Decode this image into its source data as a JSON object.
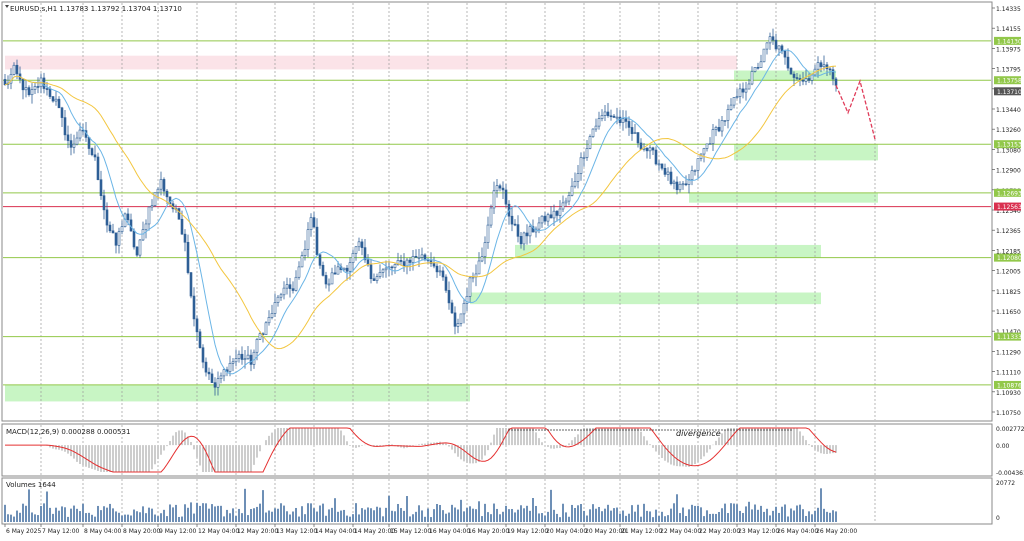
{
  "window": {
    "symbol_title": "EURUSD.s,H1  1.13783 1.13792 1.13704 1.13710"
  },
  "colors": {
    "background": "#ffffff",
    "candle": "#2f5f96",
    "support_line": "#92c84a",
    "zone_fill": "#c8f5c4",
    "pink_zone": "#fbe3e8",
    "red_line": "#d9304f",
    "ma_fast": "#6bb5e6",
    "ma_slow": "#f3c63f",
    "macd_signal": "#e53030",
    "macd_hist": "#9b9b9b",
    "volume": "#2f5f96",
    "projection": "#e03c5a",
    "grid": "#9a9a9a"
  },
  "price_axis": {
    "ticks": [
      "1.14335",
      "1.14155",
      "1.13975",
      "1.13795",
      "1.13620",
      "1.13440",
      "1.13260",
      "1.13080",
      "1.12900",
      "1.12720",
      "1.12540",
      "1.12365",
      "1.12185",
      "1.12005",
      "1.11825",
      "1.11650",
      "1.11470",
      "1.11290",
      "1.11110",
      "1.10930",
      "1.10750"
    ],
    "current_price": "1.13710",
    "ylim": [
      1.1062,
      1.1446
    ]
  },
  "levels": [
    {
      "label": "1.14130",
      "price": 1.1413,
      "color": "#92c84a"
    },
    {
      "label": "1.13758",
      "price": 1.13758,
      "color": "#92c84a"
    },
    {
      "label": "1.13153",
      "price": 1.13153,
      "color": "#92c84a"
    },
    {
      "label": "1.12693",
      "price": 1.12693,
      "color": "#92c84a"
    },
    {
      "label": "1.12563",
      "price": 1.12563,
      "color": "#d9304f"
    },
    {
      "label": "1.12080",
      "price": 1.1208,
      "color": "#92c84a"
    },
    {
      "label": "1.11333",
      "price": 1.11333,
      "color": "#92c84a"
    },
    {
      "label": "1.10876",
      "price": 1.10876,
      "color": "#92c84a"
    }
  ],
  "zones": [
    {
      "kind": "resistance",
      "start": 0,
      "end": 244,
      "top": 1.1399,
      "bottom": 1.1386
    },
    {
      "kind": "support",
      "start": 0,
      "end": 155,
      "top": 1.10876,
      "bottom": 1.1072
    },
    {
      "kind": "support",
      "start": 155,
      "end": 272,
      "top": 1.1175,
      "bottom": 1.1164
    },
    {
      "kind": "support",
      "start": 170,
      "end": 272,
      "top": 1.122,
      "bottom": 1.1208
    },
    {
      "kind": "support",
      "start": 228,
      "end": 291,
      "top": 1.12693,
      "bottom": 1.126
    },
    {
      "kind": "support",
      "start": 243,
      "end": 291,
      "top": 1.13153,
      "bottom": 1.13
    },
    {
      "kind": "support",
      "start": 243,
      "end": 277,
      "top": 1.1385,
      "bottom": 1.1375
    }
  ],
  "time_axis": {
    "labels": [
      {
        "i": 0,
        "text": "6 May 2025"
      },
      {
        "i": 12,
        "text": "7 May 12:00"
      },
      {
        "i": 26,
        "text": "8 May 04:00"
      },
      {
        "i": 39,
        "text": "8 May 20:00"
      },
      {
        "i": 51,
        "text": "9 May 12:00"
      },
      {
        "i": 64,
        "text": "12 May 04:00"
      },
      {
        "i": 77,
        "text": "12 May 20:00"
      },
      {
        "i": 90,
        "text": "13 May 12:00"
      },
      {
        "i": 103,
        "text": "14 May 04:00"
      },
      {
        "i": 116,
        "text": "14 May 20:00"
      },
      {
        "i": 128,
        "text": "15 May 12:00"
      },
      {
        "i": 141,
        "text": "16 May 04:00"
      },
      {
        "i": 154,
        "text": "16 May 20:00"
      },
      {
        "i": 167,
        "text": "19 May 12:00"
      },
      {
        "i": 180,
        "text": "20 May 04:00"
      },
      {
        "i": 193,
        "text": "20 May 20:00"
      },
      {
        "i": 205,
        "text": "21 May 12:00"
      },
      {
        "i": 218,
        "text": "22 May 04:00"
      },
      {
        "i": 231,
        "text": "22 May 20:00"
      },
      {
        "i": 244,
        "text": "23 May 12:00"
      },
      {
        "i": 257,
        "text": "26 May 04:00"
      },
      {
        "i": 270,
        "text": "26 May 20:00"
      }
    ],
    "dashed_grid_at": [
      12,
      26,
      39,
      51,
      64,
      77,
      90,
      103,
      116,
      128,
      141,
      154,
      167,
      180,
      193,
      205,
      218,
      231,
      244,
      257,
      270,
      290
    ]
  },
  "macd": {
    "title": "MACD(12,26,9) 0.000288 0.000531",
    "ticks": [
      "0.002772",
      "0.00",
      "-0.004361"
    ],
    "ylim": [
      -0.004361,
      0.002772
    ],
    "annotation": "divergence"
  },
  "volumes": {
    "title": "Volumes 1644",
    "ticks": [
      "20772",
      "0"
    ],
    "ylim": [
      0,
      20772
    ]
  },
  "chart_data": {
    "type": "candlestick",
    "symbol": "EURUSD.s",
    "timeframe": "H1",
    "bars": 278,
    "anchors": [
      [
        0,
        1.137
      ],
      [
        3,
        1.1385
      ],
      [
        8,
        1.136
      ],
      [
        12,
        1.1375
      ],
      [
        17,
        1.1355
      ],
      [
        22,
        1.131
      ],
      [
        25,
        1.133
      ],
      [
        30,
        1.13
      ],
      [
        34,
        1.124
      ],
      [
        37,
        1.122
      ],
      [
        40,
        1.125
      ],
      [
        44,
        1.121
      ],
      [
        48,
        1.1255
      ],
      [
        52,
        1.128
      ],
      [
        55,
        1.126
      ],
      [
        58,
        1.1245
      ],
      [
        60,
        1.1225
      ],
      [
        62,
        1.117
      ],
      [
        64,
        1.114
      ],
      [
        66,
        1.111
      ],
      [
        68,
        1.1095
      ],
      [
        70,
        1.1085
      ],
      [
        74,
        1.1105
      ],
      [
        78,
        1.1115
      ],
      [
        82,
        1.111
      ],
      [
        85,
        1.1135
      ],
      [
        88,
        1.115
      ],
      [
        92,
        1.1175
      ],
      [
        96,
        1.118
      ],
      [
        100,
        1.1215
      ],
      [
        102,
        1.125
      ],
      [
        104,
        1.1215
      ],
      [
        107,
        1.118
      ],
      [
        110,
        1.1195
      ],
      [
        114,
        1.12
      ],
      [
        118,
        1.122
      ],
      [
        122,
        1.119
      ],
      [
        126,
        1.1195
      ],
      [
        130,
        1.12
      ],
      [
        134,
        1.1205
      ],
      [
        138,
        1.121
      ],
      [
        142,
        1.1205
      ],
      [
        145,
        1.1195
      ],
      [
        148,
        1.1165
      ],
      [
        150,
        1.114
      ],
      [
        152,
        1.1155
      ],
      [
        155,
        1.1185
      ],
      [
        159,
        1.121
      ],
      [
        163,
        1.1275
      ],
      [
        166,
        1.127
      ],
      [
        169,
        1.124
      ],
      [
        172,
        1.1225
      ],
      [
        176,
        1.1235
      ],
      [
        180,
        1.1245
      ],
      [
        184,
        1.125
      ],
      [
        188,
        1.1265
      ],
      [
        192,
        1.13
      ],
      [
        196,
        1.133
      ],
      [
        200,
        1.1345
      ],
      [
        204,
        1.134
      ],
      [
        208,
        1.133
      ],
      [
        212,
        1.1315
      ],
      [
        216,
        1.1305
      ],
      [
        220,
        1.129
      ],
      [
        224,
        1.127
      ],
      [
        228,
        1.128
      ],
      [
        232,
        1.1305
      ],
      [
        236,
        1.1325
      ],
      [
        240,
        1.134
      ],
      [
        244,
        1.136
      ],
      [
        248,
        1.1375
      ],
      [
        252,
        1.1395
      ],
      [
        255,
        1.1415
      ],
      [
        258,
        1.1405
      ],
      [
        262,
        1.1385
      ],
      [
        266,
        1.1375
      ],
      [
        270,
        1.1385
      ],
      [
        273,
        1.1395
      ],
      [
        277,
        1.1371
      ]
    ],
    "ma_fast_period": 10,
    "ma_slow_period": 30,
    "projection": [
      {
        "i": 277,
        "price": 1.1371
      },
      {
        "i": 281,
        "price": 1.1345
      },
      {
        "i": 285,
        "price": 1.1375
      },
      {
        "i": 290,
        "price": 1.132
      }
    ]
  }
}
